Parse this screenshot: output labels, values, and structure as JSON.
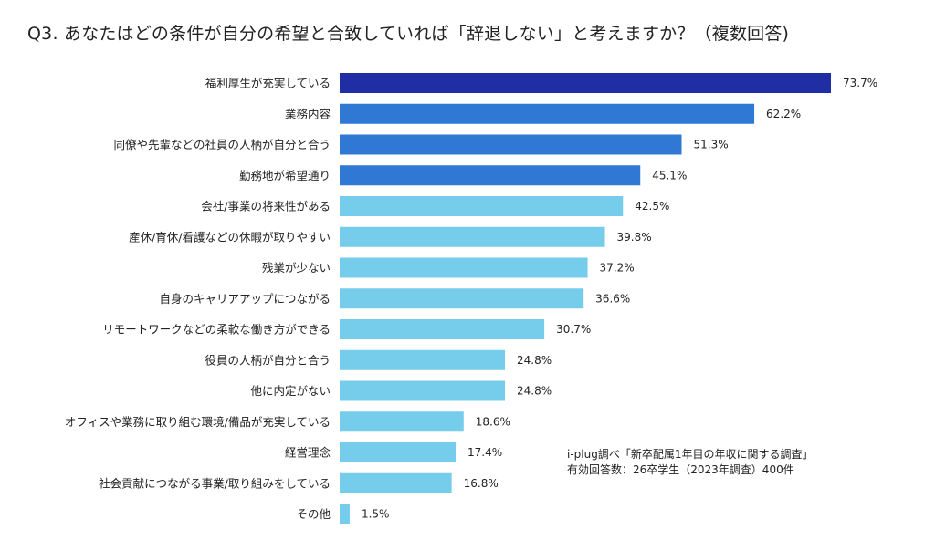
{
  "chart_data": {
    "type": "bar",
    "orientation": "horizontal",
    "title": "Q3. あなたはどの条件が自分の希望と合致していれば「辞退しない」と考えますか？（複数回答)",
    "categories": [
      "福利厚生が充実している",
      "業務内容",
      "同僚や先輩などの社員の人柄が自分と合う",
      "勤務地が希望通り",
      "会社/事業の将来性がある",
      "産休/育休/看護などの休暇が取りやすい",
      "残業が少ない",
      "自身のキャリアアップにつながる",
      "リモートワークなどの柔軟な働き方ができる",
      "役員の人柄が自分と合う",
      "他に内定がない",
      "オフィスや業務に取り組む環境/備品が充実している",
      "経営理念",
      "社会貢献につながる事業/取り組みをしている",
      "その他"
    ],
    "values": [
      73.7,
      62.2,
      51.3,
      45.1,
      42.5,
      39.8,
      37.2,
      36.6,
      30.7,
      24.8,
      24.8,
      18.6,
      17.4,
      16.8,
      1.5
    ],
    "value_labels": [
      "73.7%",
      "62.2%",
      "51.3%",
      "45.1%",
      "42.5%",
      "39.8%",
      "37.2%",
      "36.6%",
      "30.7%",
      "24.8%",
      "24.8%",
      "18.6%",
      "17.4%",
      "16.8%",
      "1.5%"
    ],
    "bar_colors": [
      "#1f2fa3",
      "#2f78d4",
      "#2f78d4",
      "#2f78d4",
      "#75cdeb",
      "#75cdeb",
      "#75cdeb",
      "#75cdeb",
      "#75cdeb",
      "#75cdeb",
      "#75cdeb",
      "#75cdeb",
      "#75cdeb",
      "#75cdeb",
      "#75cdeb"
    ],
    "xlim": [
      0,
      100
    ],
    "grid": false,
    "legend": "none"
  },
  "source_note": {
    "line1": "i-plug調べ「新卒配属1年目の年収に関する調査」",
    "line2": "有効回答数：26卒学生（2023年調査）400件"
  }
}
